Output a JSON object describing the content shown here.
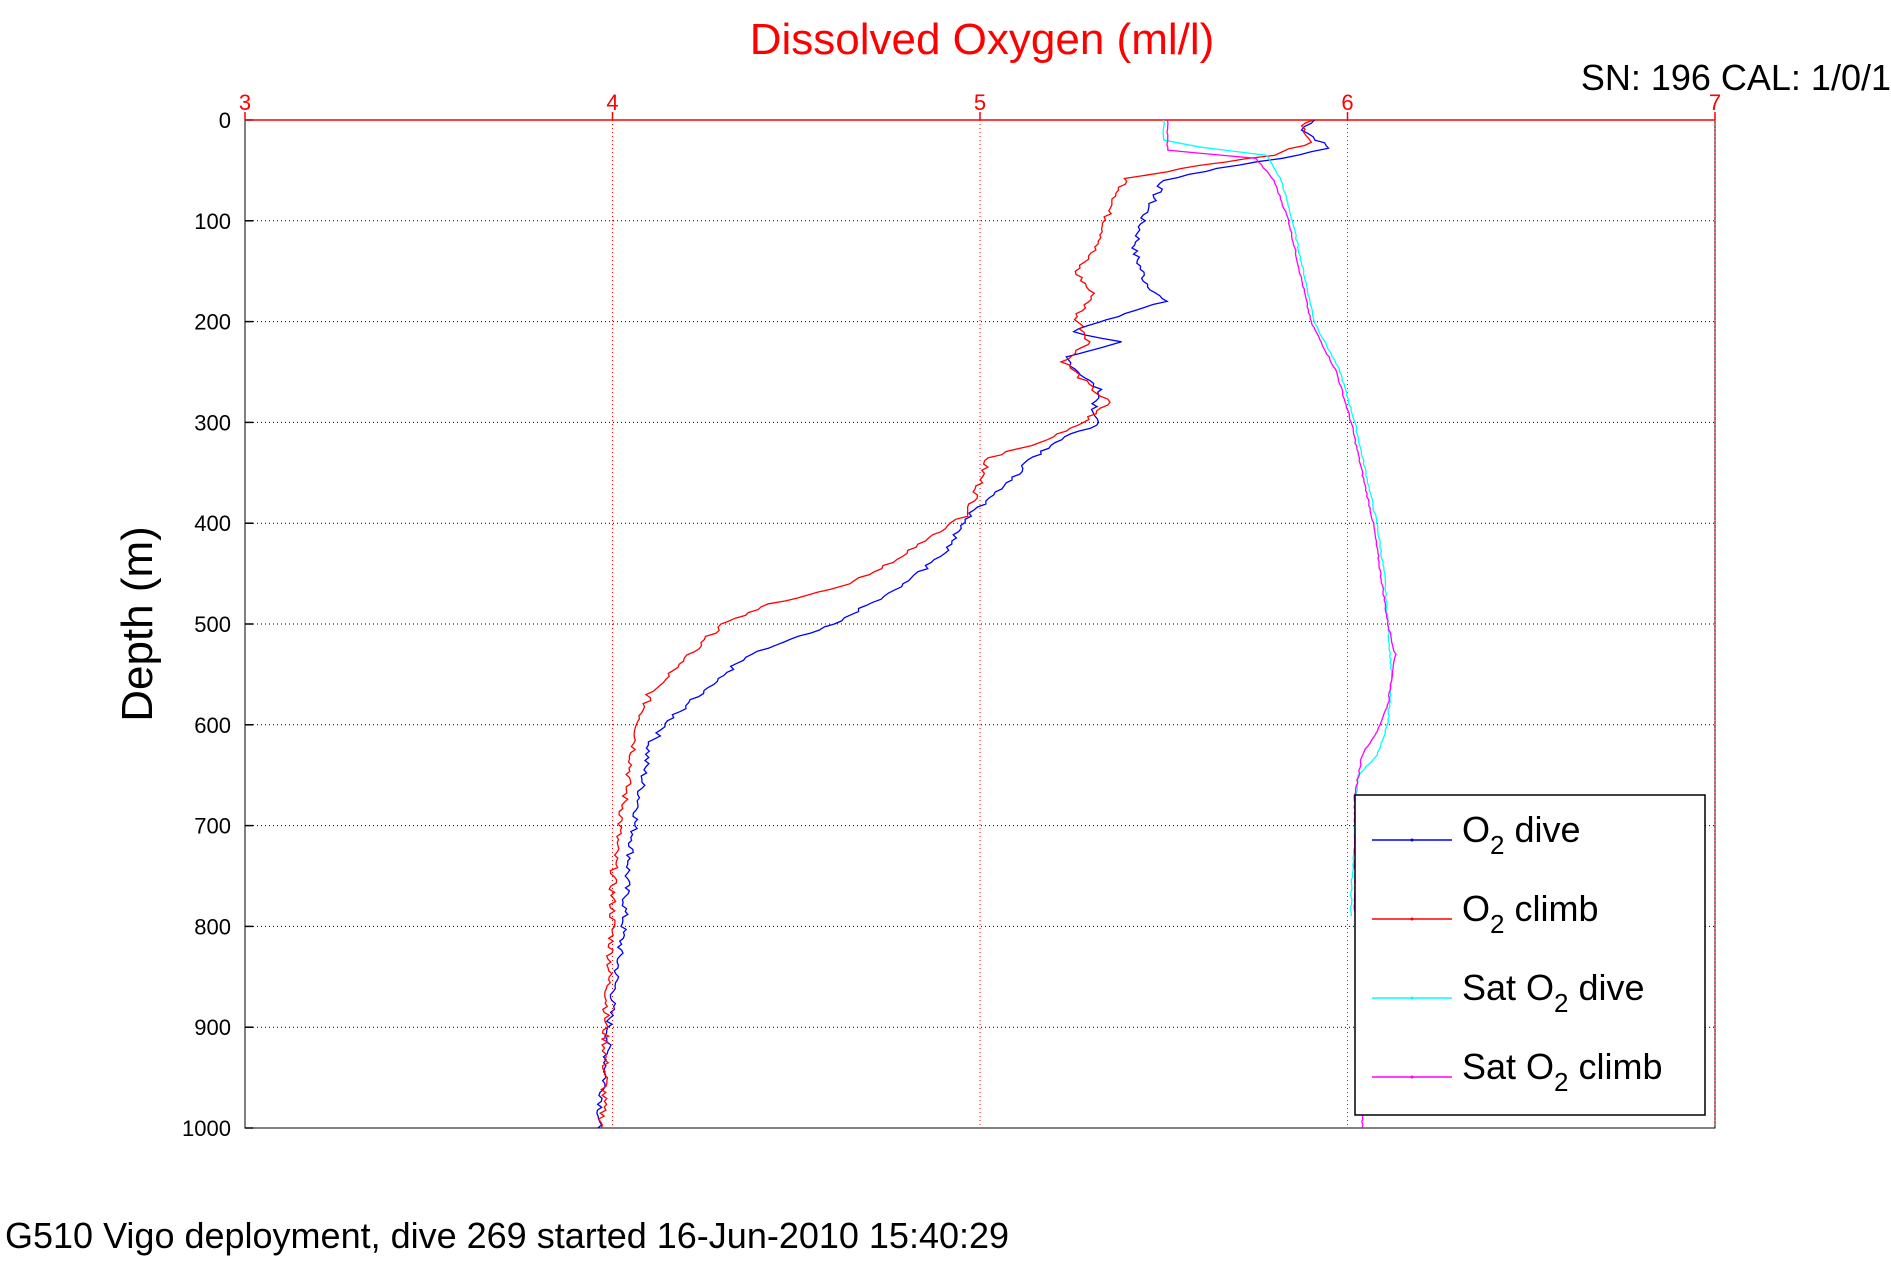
{
  "chart_data": {
    "type": "line",
    "title": "Dissolved Oxygen (ml/l)",
    "title_color": "#ff0000",
    "annotation_top_right": "SN: 196  CAL: 1/0/1",
    "footer": "G510 Vigo deployment, dive 269 started 16-Jun-2010 15:40:29",
    "ylabel": "Depth (m)",
    "xlabel": "",
    "x_axis_position": "top",
    "x_axis_color": "#ff0000",
    "xlim": [
      3,
      7
    ],
    "ylim": [
      0,
      1000
    ],
    "y_reversed": true,
    "grid": true,
    "x_ticks": [
      3,
      4,
      5,
      6,
      7
    ],
    "y_ticks": [
      0,
      100,
      200,
      300,
      400,
      500,
      600,
      700,
      800,
      900,
      1000
    ],
    "legend_position": "bottom-right",
    "series": [
      {
        "name": "O2 dive",
        "label_main": "O",
        "label_sub": "2",
        "label_rest": " dive",
        "color": "#0000ff",
        "points": [
          [
            5.91,
            0
          ],
          [
            5.88,
            10
          ],
          [
            5.92,
            20
          ],
          [
            5.95,
            28
          ],
          [
            5.82,
            38
          ],
          [
            5.65,
            48
          ],
          [
            5.5,
            60
          ],
          [
            5.47,
            80
          ],
          [
            5.44,
            100
          ],
          [
            5.42,
            130
          ],
          [
            5.45,
            160
          ],
          [
            5.5,
            180
          ],
          [
            5.37,
            195
          ],
          [
            5.25,
            210
          ],
          [
            5.38,
            220
          ],
          [
            5.23,
            235
          ],
          [
            5.27,
            250
          ],
          [
            5.33,
            270
          ],
          [
            5.3,
            290
          ],
          [
            5.33,
            300
          ],
          [
            5.2,
            320
          ],
          [
            5.13,
            340
          ],
          [
            5.08,
            360
          ],
          [
            4.98,
            390
          ],
          [
            4.9,
            430
          ],
          [
            4.8,
            460
          ],
          [
            4.6,
            500
          ],
          [
            4.37,
            530
          ],
          [
            4.27,
            560
          ],
          [
            4.17,
            590
          ],
          [
            4.1,
            620
          ],
          [
            4.08,
            660
          ],
          [
            4.06,
            700
          ],
          [
            4.04,
            750
          ],
          [
            4.03,
            800
          ],
          [
            4.01,
            850
          ],
          [
            3.99,
            900
          ],
          [
            3.98,
            950
          ],
          [
            3.96,
            1000
          ]
        ]
      },
      {
        "name": "O2 climb",
        "label_main": "O",
        "label_sub": "2",
        "label_rest": " climb",
        "color": "#ff0000",
        "points": [
          [
            5.9,
            0
          ],
          [
            5.87,
            12
          ],
          [
            5.9,
            22
          ],
          [
            5.8,
            35
          ],
          [
            5.6,
            45
          ],
          [
            5.4,
            58
          ],
          [
            5.35,
            90
          ],
          [
            5.33,
            120
          ],
          [
            5.26,
            150
          ],
          [
            5.31,
            175
          ],
          [
            5.26,
            195
          ],
          [
            5.3,
            220
          ],
          [
            5.23,
            240
          ],
          [
            5.3,
            265
          ],
          [
            5.35,
            280
          ],
          [
            5.28,
            300
          ],
          [
            5.17,
            320
          ],
          [
            5.02,
            335
          ],
          [
            5.0,
            360
          ],
          [
            4.97,
            390
          ],
          [
            4.8,
            430
          ],
          [
            4.65,
            460
          ],
          [
            4.43,
            480
          ],
          [
            4.3,
            500
          ],
          [
            4.18,
            540
          ],
          [
            4.1,
            570
          ],
          [
            4.07,
            600
          ],
          [
            4.05,
            640
          ],
          [
            4.03,
            680
          ],
          [
            4.01,
            720
          ],
          [
            4.0,
            760
          ],
          [
            4.0,
            800
          ],
          [
            3.99,
            850
          ],
          [
            3.98,
            900
          ],
          [
            3.98,
            950
          ],
          [
            3.97,
            1000
          ]
        ]
      },
      {
        "name": "Sat O2 dive",
        "label_main": "Sat O",
        "label_sub": "2",
        "label_rest": " dive",
        "color": "#00ffff",
        "points": [
          [
            5.5,
            0
          ],
          [
            5.5,
            20
          ],
          [
            5.6,
            27
          ],
          [
            5.78,
            35
          ],
          [
            5.82,
            60
          ],
          [
            5.85,
            100
          ],
          [
            5.88,
            150
          ],
          [
            5.91,
            200
          ],
          [
            5.98,
            250
          ],
          [
            6.02,
            300
          ],
          [
            6.05,
            350
          ],
          [
            6.08,
            400
          ],
          [
            6.1,
            450
          ],
          [
            6.11,
            500
          ],
          [
            6.12,
            550
          ],
          [
            6.11,
            600
          ],
          [
            6.08,
            630
          ],
          [
            6.03,
            650
          ],
          [
            6.02,
            680
          ],
          [
            6.02,
            720
          ],
          [
            6.01,
            760
          ],
          [
            6.01,
            790
          ]
        ]
      },
      {
        "name": "Sat O2 climb",
        "label_main": "Sat O",
        "label_sub": "2",
        "label_rest": " climb",
        "color": "#ff00ff",
        "points": [
          [
            5.51,
            0
          ],
          [
            5.51,
            30
          ],
          [
            5.75,
            38
          ],
          [
            5.8,
            60
          ],
          [
            5.84,
            100
          ],
          [
            5.87,
            150
          ],
          [
            5.9,
            200
          ],
          [
            5.97,
            250
          ],
          [
            6.01,
            300
          ],
          [
            6.04,
            350
          ],
          [
            6.07,
            400
          ],
          [
            6.09,
            450
          ],
          [
            6.11,
            500
          ],
          [
            6.13,
            530
          ],
          [
            6.11,
            580
          ],
          [
            6.09,
            600
          ],
          [
            6.04,
            630
          ],
          [
            6.02,
            670
          ],
          [
            6.02,
            720
          ],
          [
            6.02,
            780
          ],
          [
            6.03,
            850
          ],
          [
            6.04,
            920
          ],
          [
            6.04,
            1000
          ]
        ]
      }
    ]
  }
}
